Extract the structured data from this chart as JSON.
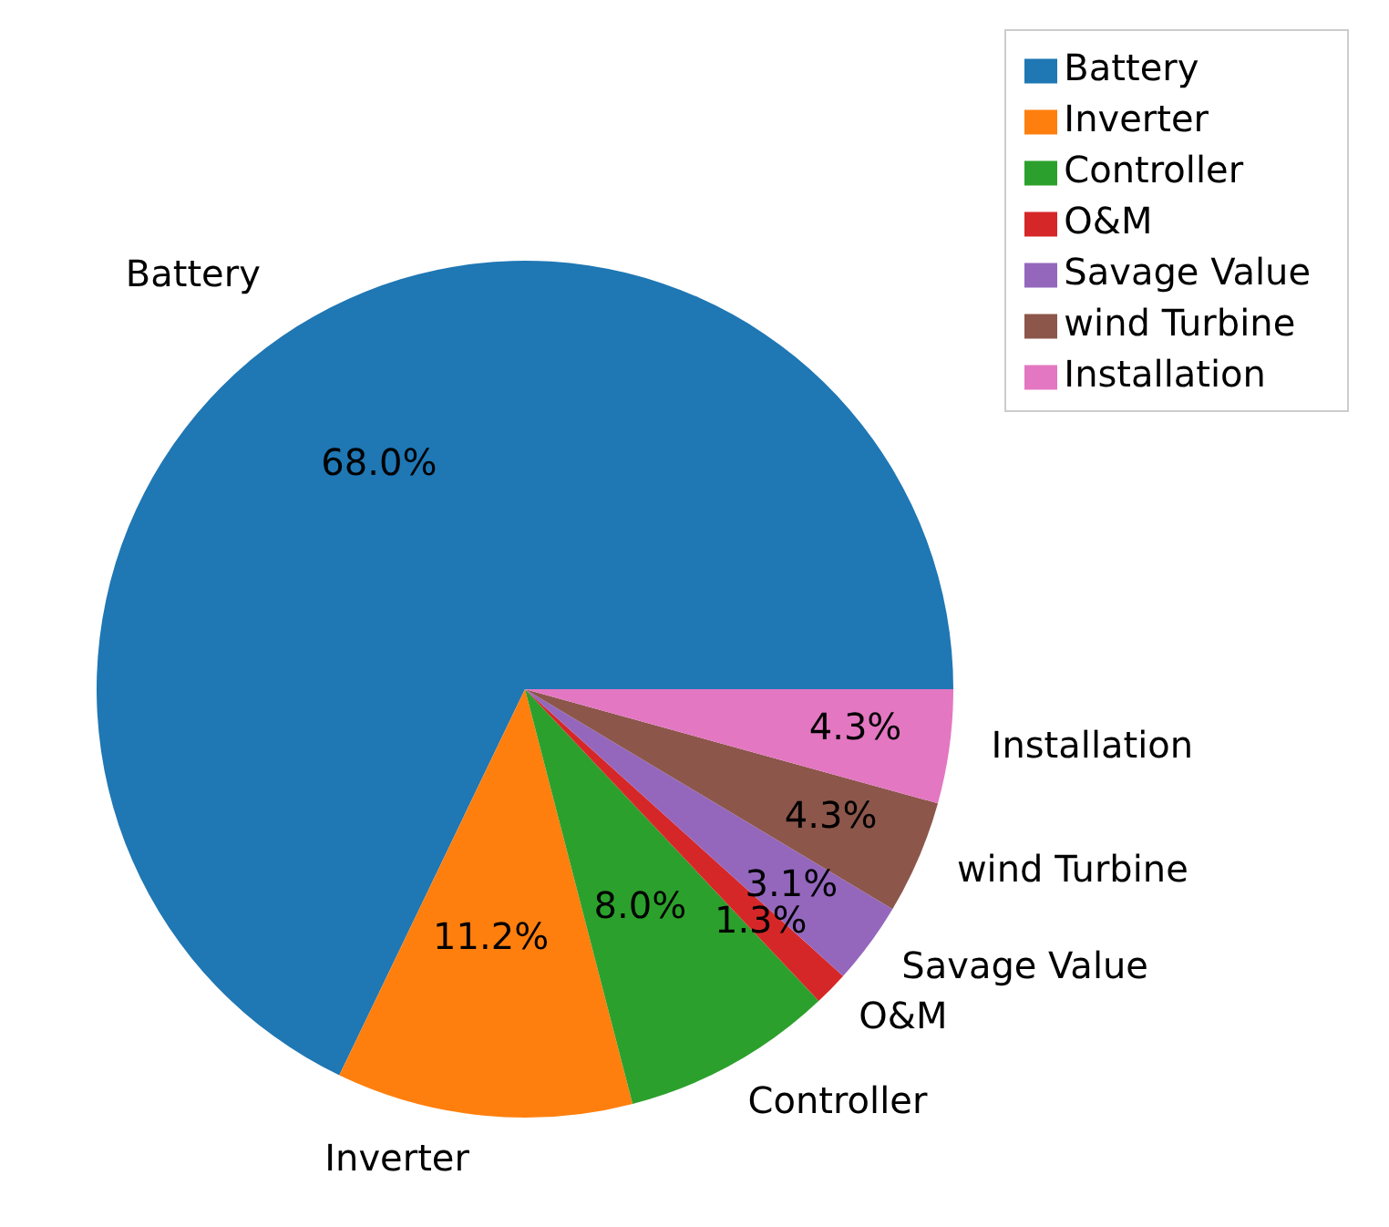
{
  "chart_data": {
    "type": "pie",
    "categories": [
      "Battery",
      "Inverter",
      "Controller",
      "O&M",
      "Savage Value",
      "wind Turbine",
      "Installation"
    ],
    "values": [
      68.0,
      11.2,
      8.0,
      1.3,
      3.1,
      4.3,
      4.3
    ],
    "value_labels": [
      "68.0%",
      "11.2%",
      "8.0%",
      "1.3%",
      "3.1%",
      "4.3%",
      "4.3%"
    ],
    "colors": [
      "#1f77b4",
      "#ff7f0e",
      "#2ca02c",
      "#d62728",
      "#9467bd",
      "#8c564b",
      "#e377c2"
    ],
    "legend": "top right"
  }
}
